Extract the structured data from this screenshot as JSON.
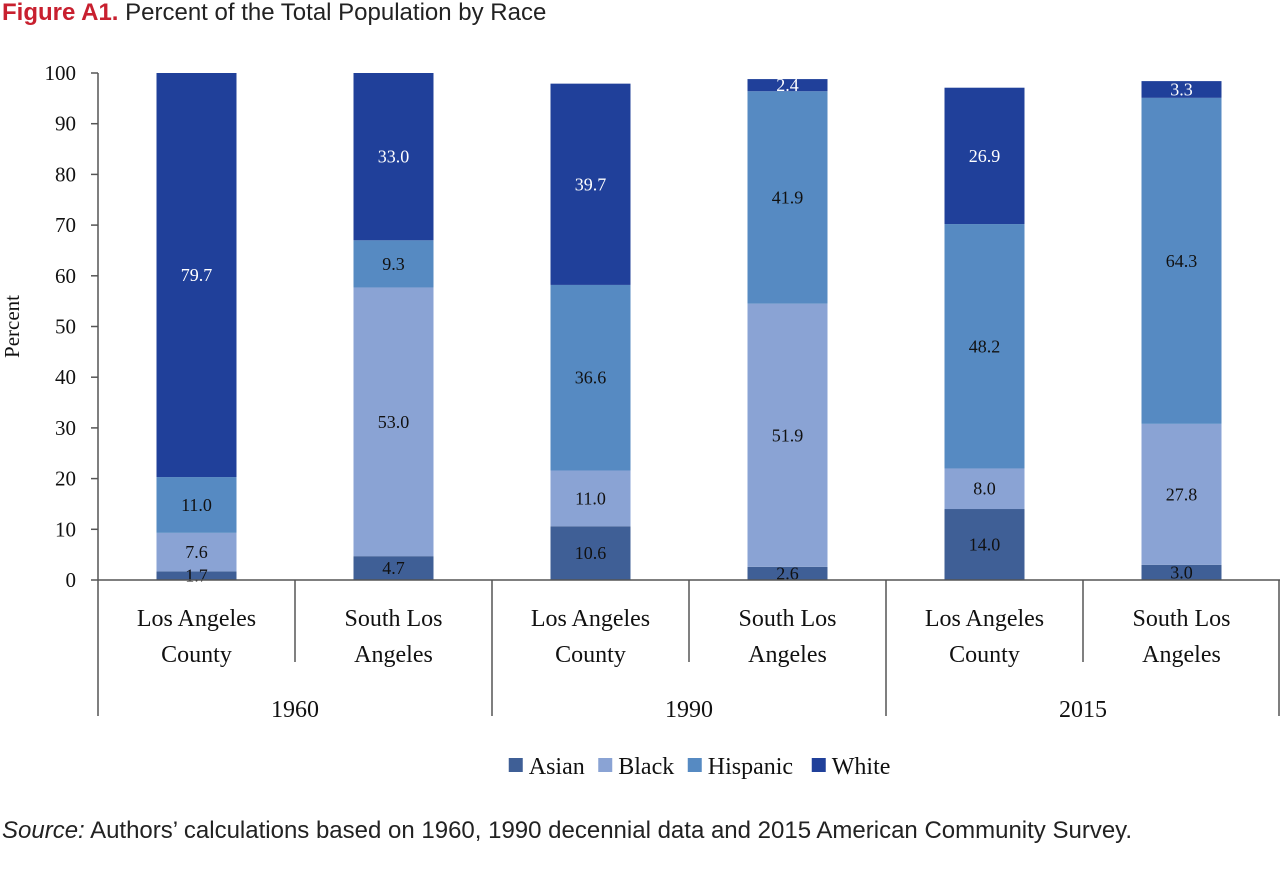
{
  "figure": {
    "label": "Figure A1.",
    "title": "Percent of the Total Population by Race"
  },
  "source": {
    "prefix": "Source:",
    "text": "Authors’ calculations based on 1960, 1990 decennial data and 2015 American Community Survey."
  },
  "chart_data": {
    "type": "bar",
    "stacked": true,
    "ylabel": "Percent",
    "ylim": [
      0,
      100
    ],
    "yticks": [
      0,
      10,
      20,
      30,
      40,
      50,
      60,
      70,
      80,
      90,
      100
    ],
    "grid": false,
    "legend_position": "bottom",
    "groups": [
      {
        "label": "1960",
        "categories": [
          "Los Angeles County",
          "South Los Angeles"
        ]
      },
      {
        "label": "1990",
        "categories": [
          "Los Angeles County",
          "South Los Angeles"
        ]
      },
      {
        "label": "2015",
        "categories": [
          "Los Angeles County",
          "South Los Angeles"
        ]
      }
    ],
    "category_label_lines": [
      [
        "Los Angeles",
        "County"
      ],
      [
        "South Los",
        "Angeles"
      ],
      [
        "Los Angeles",
        "County"
      ],
      [
        "South Los",
        "Angeles"
      ],
      [
        "Los Angeles",
        "County"
      ],
      [
        "South Los",
        "Angeles"
      ]
    ],
    "series": [
      {
        "name": "Asian",
        "color": "#3f5f96",
        "label_color": "#111111",
        "values": [
          1.7,
          4.7,
          10.6,
          2.6,
          14.0,
          3.0
        ]
      },
      {
        "name": "Black",
        "color": "#8aa3d4",
        "label_color": "#111111",
        "values": [
          7.6,
          53.0,
          11.0,
          51.9,
          8.0,
          27.8
        ]
      },
      {
        "name": "Hispanic",
        "color": "#568ac2",
        "label_color": "#111111",
        "values": [
          11.0,
          9.3,
          36.6,
          41.9,
          48.2,
          64.3
        ]
      },
      {
        "name": "White",
        "color": "#20409a",
        "label_color": "#ffffff",
        "values": [
          79.7,
          33.0,
          39.7,
          2.4,
          26.9,
          3.3
        ]
      }
    ]
  }
}
